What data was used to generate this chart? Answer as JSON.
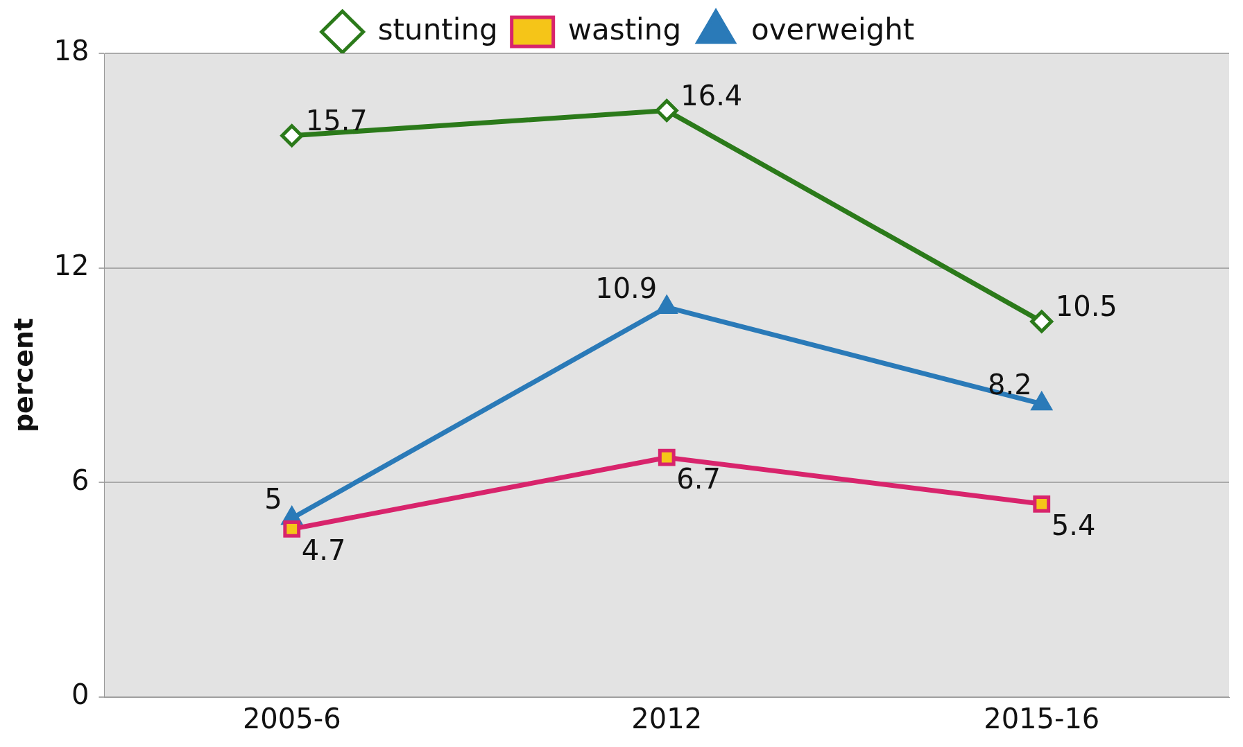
{
  "chart_data": {
    "type": "line",
    "ylabel": "percent",
    "categories": [
      "2005-6",
      "2012",
      "2015-16"
    ],
    "series": [
      {
        "name": "stunting",
        "color": "#2b7a1a",
        "marker": "diamond",
        "values": [
          15.7,
          16.4,
          10.5
        ]
      },
      {
        "name": "wasting",
        "color": "#d8246c",
        "marker": "square",
        "values": [
          4.7,
          6.7,
          5.4
        ]
      },
      {
        "name": "overweight",
        "color": "#2a7ab8",
        "marker": "triangle",
        "values": [
          5,
          10.9,
          8.2
        ]
      }
    ],
    "ylim": [
      0,
      18
    ],
    "yticks": [
      0,
      6,
      12,
      18
    ],
    "grid": "y",
    "legend": "top",
    "data_labels": true
  }
}
